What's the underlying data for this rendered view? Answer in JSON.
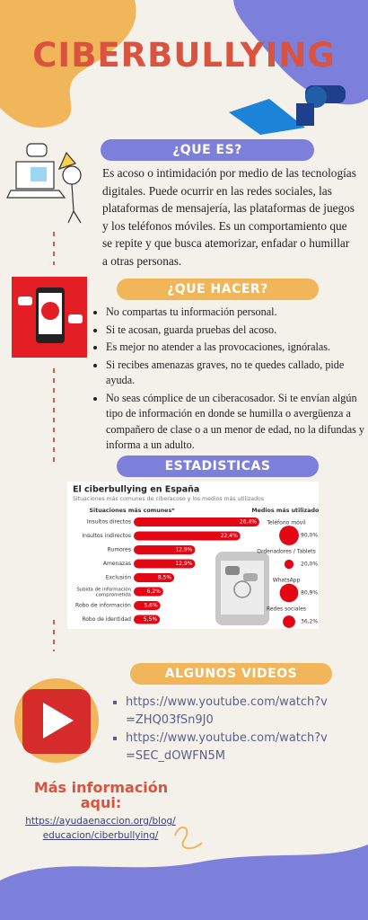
{
  "header": {
    "title": "CIBERBULLYING"
  },
  "what": {
    "heading": "¿QUE ES?",
    "text": "Es acoso o intimidación por medio de las tecnologías digitales. Puede ocurrir en las redes sociales, las plataformas de mensajería, las plataformas de juegos y los teléfonos móviles. Es un comportamiento que se repite y que busca atemorizar, enfadar o humillar a otras personas."
  },
  "todo": {
    "heading": "¿QUE HACER?",
    "items": [
      "No compartas tu información personal.",
      "Si te acosan, guarda pruebas del acoso.",
      "Es mejor no atender a las provocaciones, ignóralas.",
      "Si recibes amenazas graves, no te quedes callado, pide ayuda.",
      "No seas cómplice de un ciberacosador. Si te envían algún tipo de información en donde se humilla o avergüenza a compañero de clase o a un menor de edad, no la difundas y informa a un adulto."
    ]
  },
  "stats": {
    "heading": "ESTADISTICAS",
    "chart": {
      "type": "bar",
      "title": "El ciberbullying en España",
      "subtitle": "Situaciones más comunes de ciberacoso y los medios más utilizados",
      "left_heading": "Situaciones más comunes*",
      "right_heading": "Medios más utilizados**",
      "categories": [
        "Insultos directos",
        "Insultos indirectos",
        "Rumores",
        "Amenazas",
        "Exclusión",
        "Subida de información comprometida",
        "Robo de información",
        "Robo de identidad"
      ],
      "values": [
        26.4,
        22.4,
        12.9,
        12.9,
        8.5,
        6.2,
        5.6,
        5.5
      ],
      "value_labels": [
        "26,4%",
        "22,4%",
        "12,9%",
        "12,9%",
        "8,5%",
        "6,2%",
        "5,6%",
        "5,5%"
      ],
      "color": "#e30613",
      "media": {
        "categories": [
          "Teléfono móvil",
          "Ordenadores / Tablets",
          "WhatsApp",
          "Redes sociales"
        ],
        "values": [
          90.0,
          20.0,
          80.9,
          36.2
        ],
        "value_labels": [
          "90,0%",
          "20,0%",
          "80,9%",
          "36,2%"
        ]
      }
    }
  },
  "videos": {
    "heading": "ALGUNOS VIDEOS",
    "links": [
      "https://www.youtube.com/watch?v=ZHQ03fSn9J0",
      "https://www.youtube.com/watch?v=SEC_dOWFN5M"
    ]
  },
  "more": {
    "heading": "Más información aqui:",
    "link": "https://ayudaenaccion.org/blog/educacion/ciberbullying/"
  }
}
